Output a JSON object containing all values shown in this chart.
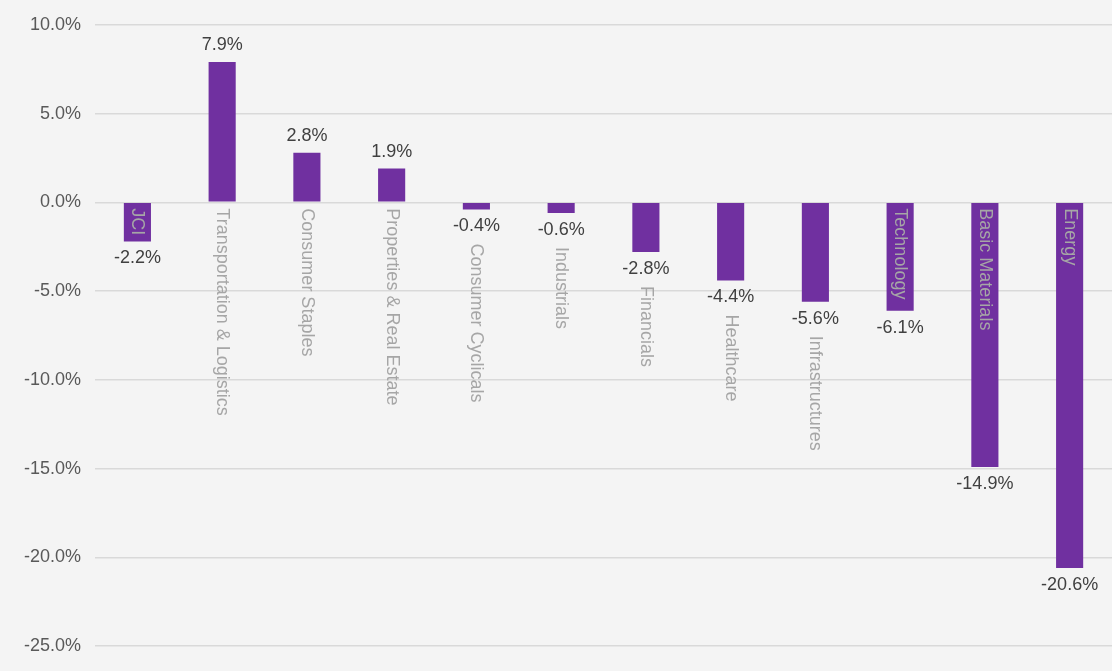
{
  "chart_data": {
    "type": "bar",
    "categories": [
      "JCI",
      "Transportation & Logistics",
      "Consumer Staples",
      "Properties & Real Estate",
      "Consumer Cyclicals",
      "Industrials",
      "Financials",
      "Healthcare",
      "Infrastructures",
      "Technology",
      "Basic Materials",
      "Energy"
    ],
    "values": [
      -2.2,
      7.9,
      2.8,
      1.9,
      -0.4,
      -0.6,
      -2.8,
      -4.4,
      -5.6,
      -6.1,
      -14.9,
      -20.6
    ],
    "value_labels": [
      "-2.2%",
      "7.9%",
      "2.8%",
      "1.9%",
      "-0.4%",
      "-0.6%",
      "-2.8%",
      "-4.4%",
      "-5.6%",
      "-6.1%",
      "-14.9%",
      "-20.6%"
    ],
    "color": "#7030a0",
    "ylim": [
      -25,
      10
    ],
    "yticks": [
      {
        "value": -25,
        "label": "-25.0%"
      },
      {
        "value": -20,
        "label": "-20.0%"
      },
      {
        "value": -15,
        "label": "-15.0%"
      },
      {
        "value": -10,
        "label": "-10.0%"
      },
      {
        "value": -5,
        "label": "-5.0%"
      },
      {
        "value": 0,
        "label": "0.0%"
      },
      {
        "value": 5,
        "label": "5.0%"
      },
      {
        "value": 10,
        "label": "10.0%"
      }
    ],
    "grid": "y",
    "legend": false
  }
}
